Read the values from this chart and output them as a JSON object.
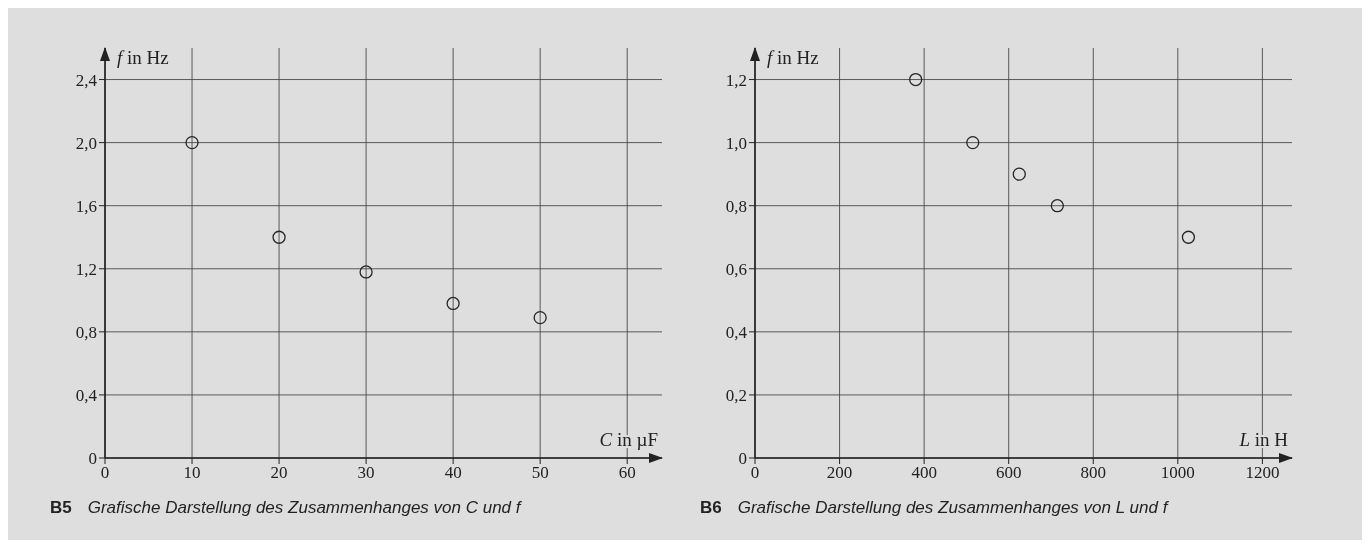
{
  "chart_data": [
    {
      "type": "scatter",
      "xlabel": "C in µF",
      "ylabel": "f in Hz",
      "annotations": [
        "B5",
        "Grafische Darstellung des Zusammenhanges von C und f"
      ],
      "x": [
        10,
        20,
        30,
        40,
        50
      ],
      "values": [
        2.0,
        1.4,
        1.18,
        0.98,
        0.89
      ],
      "color": "#262626",
      "marker": "circle",
      "xlim": [
        0,
        64
      ],
      "ylim": [
        0,
        2.6
      ],
      "xticks": [
        0,
        10,
        20,
        30,
        40,
        50,
        60
      ],
      "yticks": [
        0,
        {
          "value": 0.4,
          "label": "0,4"
        },
        {
          "value": 0.8,
          "label": "0,8"
        },
        {
          "value": 1.2,
          "label": "1,2"
        },
        {
          "value": 1.6,
          "label": "1,6"
        },
        {
          "value": 2.0,
          "label": "2,0"
        },
        {
          "value": 2.4,
          "label": "2,4"
        }
      ],
      "grid": true
    },
    {
      "type": "scatter",
      "xlabel": "L in H",
      "ylabel": "f in Hz",
      "annotations": [
        "B6",
        "Grafische Darstellung des Zusammenhanges von L und f"
      ],
      "x": [
        380,
        515,
        625,
        715,
        1025
      ],
      "values": [
        1.2,
        1.0,
        0.9,
        0.8,
        0.7
      ],
      "color": "#262626",
      "marker": "circle",
      "xlim": [
        0,
        1270
      ],
      "ylim": [
        0,
        1.3
      ],
      "xticks": [
        0,
        200,
        400,
        600,
        800,
        1000,
        1200
      ],
      "yticks": [
        0,
        {
          "value": 0.2,
          "label": "0,2"
        },
        {
          "value": 0.4,
          "label": "0,4"
        },
        {
          "value": 0.6,
          "label": "0,6"
        },
        {
          "value": 0.8,
          "label": "0,8"
        },
        {
          "value": 1.0,
          "label": "1,0"
        },
        {
          "value": 1.2,
          "label": "1,2"
        }
      ],
      "grid": true
    }
  ]
}
